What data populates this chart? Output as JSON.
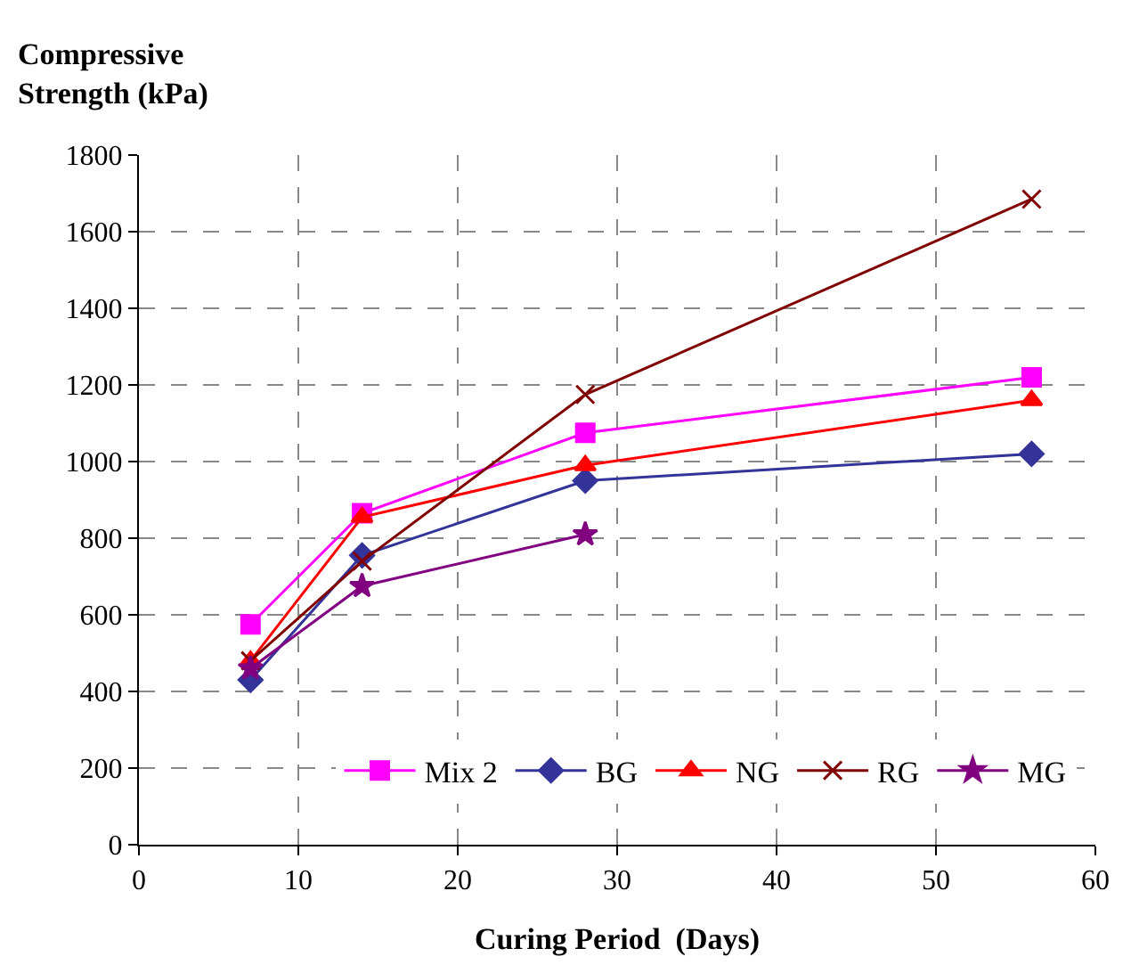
{
  "chart_data": {
    "type": "line",
    "xlabel": "Curing Period  (Days)",
    "ylabel": "Compressive Strength (kPa)",
    "x": [
      7,
      14,
      28,
      56
    ],
    "series": [
      {
        "name": "Mix 2",
        "color": "#ff00ff",
        "marker": "square",
        "values": [
          575,
          865,
          1075,
          1220
        ]
      },
      {
        "name": "BG",
        "color": "#333399",
        "marker": "diamond",
        "values": [
          430,
          755,
          950,
          1020
        ]
      },
      {
        "name": "NG",
        "color": "#ff0000",
        "marker": "triangle",
        "values": [
          480,
          855,
          990,
          1160
        ]
      },
      {
        "name": "RG",
        "color": "#800000",
        "marker": "cross",
        "values": [
          480,
          740,
          1175,
          1685
        ]
      },
      {
        "name": "MG",
        "color": "#800080",
        "marker": "star",
        "values": [
          460,
          675,
          810,
          null
        ]
      }
    ],
    "xlim": [
      0,
      60
    ],
    "xticks": [
      0,
      10,
      20,
      30,
      40,
      50,
      60
    ],
    "ylim": [
      0,
      1800
    ],
    "yticks": [
      0,
      200,
      400,
      600,
      800,
      1000,
      1200,
      1400,
      1600,
      1800
    ],
    "grid": true,
    "legend": "bottom",
    "line_style": "solid"
  }
}
